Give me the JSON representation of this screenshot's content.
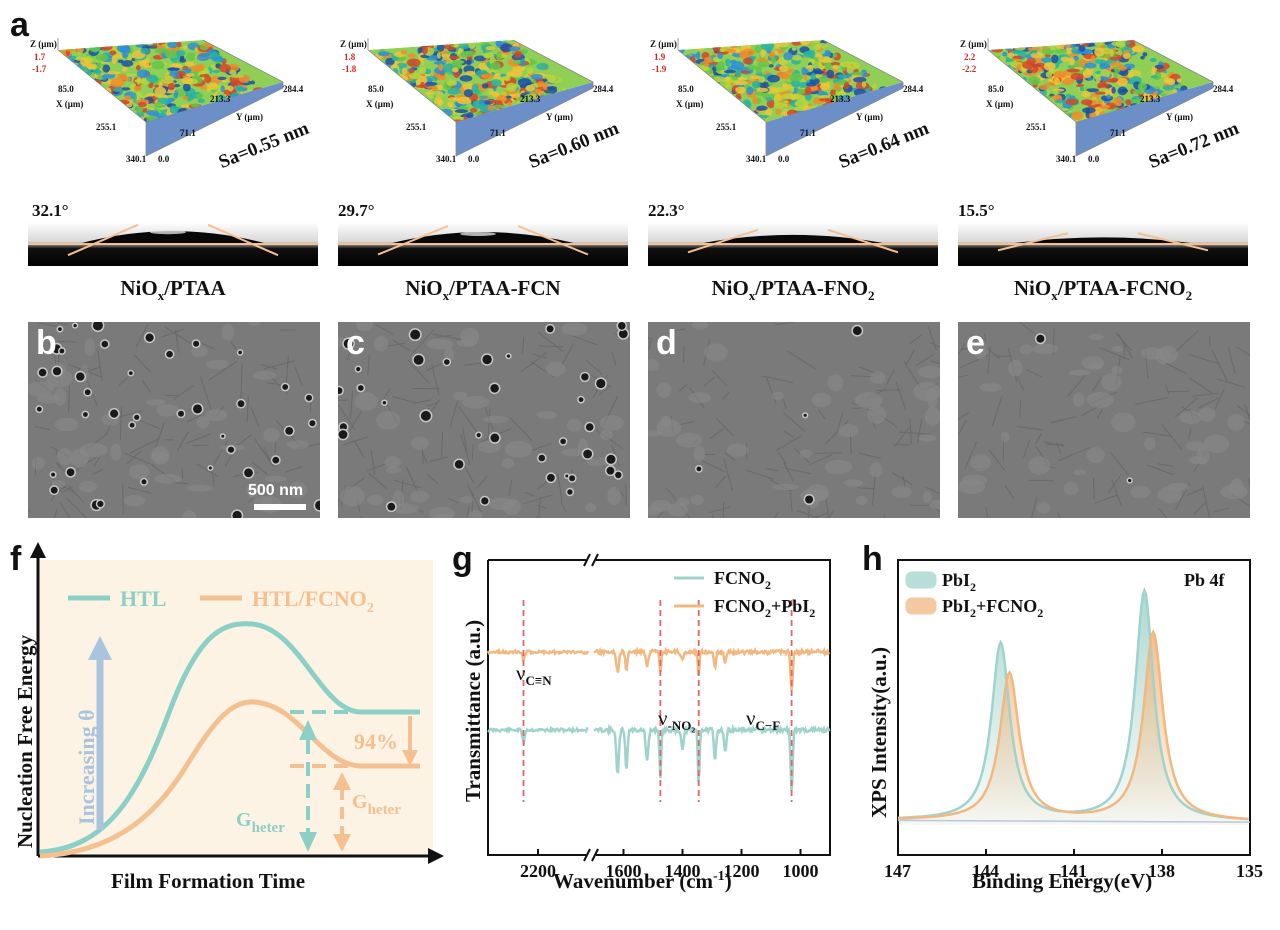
{
  "figure": {
    "panel_a": {
      "label": "a",
      "samples": [
        {
          "z_label": "Z (μm)",
          "z_max": "1.7",
          "z_min": "-1.7",
          "x_label": "X (μm)",
          "x_ticks": [
            "85.0",
            "255.1",
            "340.1"
          ],
          "zero": "0.0",
          "y_label": "Y (μm)",
          "y_ticks": [
            "284.4",
            "213.3",
            "71.1"
          ],
          "sa": "Sa=0.55 nm",
          "angle": "32.1°",
          "caption_main": "NiO",
          "caption_sub": "x",
          "caption_rest": "/PTAA",
          "caption_rest_sub": "",
          "droplet_height": 0.55
        },
        {
          "z_label": "Z (μm)",
          "z_max": "1.8",
          "z_min": "-1.8",
          "x_label": "X (μm)",
          "x_ticks": [
            "85.0",
            "255.1",
            "340.1"
          ],
          "zero": "0.0",
          "y_label": "Y (μm)",
          "y_ticks": [
            "284.4",
            "213.3",
            "71.1"
          ],
          "sa": "Sa=0.60 nm",
          "angle": "29.7°",
          "caption_main": "NiO",
          "caption_sub": "x",
          "caption_rest": "/PTAA-FCN",
          "caption_rest_sub": "",
          "droplet_height": 0.5
        },
        {
          "z_label": "Z (μm)",
          "z_max": "1.9",
          "z_min": "-1.9",
          "x_label": "X (μm)",
          "x_ticks": [
            "85.0",
            "255.1",
            "340.1"
          ],
          "zero": "0.0",
          "y_label": "Y (μm)",
          "y_ticks": [
            "284.4",
            "213.3",
            "71.1"
          ],
          "sa": "Sa=0.64 nm",
          "angle": "22.3°",
          "caption_main": "NiO",
          "caption_sub": "x",
          "caption_rest": "/PTAA-FNO",
          "caption_rest_sub": "2",
          "droplet_height": 0.34
        },
        {
          "z_label": "Z (μm)",
          "z_max": "2.2",
          "z_min": "-2.2",
          "x_label": "X (μm)",
          "x_ticks": [
            "85.0",
            "255.1",
            "340.1"
          ],
          "zero": "0.0",
          "y_label": "Y (μm)",
          "y_ticks": [
            "284.4",
            "213.3",
            "71.1"
          ],
          "sa": "Sa=0.72 nm",
          "angle": "15.5°",
          "caption_main": "NiO",
          "caption_sub": "x",
          "caption_rest": "/PTAA-FCNO",
          "caption_rest_sub": "2",
          "droplet_height": 0.2
        }
      ]
    },
    "sem_panels": [
      {
        "label": "b",
        "scale_bar": "500 nm"
      },
      {
        "label": "c",
        "scale_bar": ""
      },
      {
        "label": "d",
        "scale_bar": ""
      },
      {
        "label": "e",
        "scale_bar": ""
      }
    ],
    "panel_f": {
      "label": "f",
      "ylabel": "Nucleation Free Energy",
      "xlabel": "Film Formation Time",
      "legend": [
        {
          "name": "HTL",
          "color": "#8ccfc6"
        },
        {
          "name": "HTL/FCNO",
          "sub": "2",
          "color": "#f5c08f"
        }
      ],
      "arrow_text": "Increasing θ",
      "percent": "94%",
      "g_label": "G",
      "g_sub": "heter"
    },
    "panel_g": {
      "label": "g",
      "ylabel": "Transmittance (a.u.)",
      "xlabel": "Wavenumber (cm",
      "xlabel_sup": "-1",
      "xlabel_end": ")",
      "x_ticks": [
        "2200",
        "1600",
        "1400",
        "1200",
        "1000"
      ],
      "legend": [
        {
          "name": "FCNO",
          "sub": "2",
          "color": "#9fd3cc"
        },
        {
          "name": "FCNO",
          "sub": "2",
          "suffix": "+PbI",
          "suffix_sub": "2",
          "color": "#f2b880"
        }
      ],
      "annotations": [
        {
          "text": "ν",
          "sub": "C≡N"
        },
        {
          "text": "ν",
          "sub": "-NO₂"
        },
        {
          "text": "ν",
          "sub": "C−F"
        }
      ]
    },
    "panel_h": {
      "label": "h",
      "ylabel": "XPS Intensity(a.u.)",
      "xlabel": "Binding Energy(eV)",
      "x_ticks": [
        "147",
        "144",
        "141",
        "138",
        "135"
      ],
      "title": "Pb 4f",
      "legend": [
        {
          "name": "PbI",
          "sub": "2",
          "color": "#9fd3cc"
        },
        {
          "name": "PbI",
          "sub": "2",
          "suffix": "+FCNO",
          "suffix_sub": "2",
          "color": "#f2b880"
        }
      ]
    }
  },
  "chart_data": [
    {
      "type": "line",
      "panel": "g",
      "xlabel": "Wavenumber (cm-1)",
      "ylabel": "Transmittance (a.u.)",
      "axis_break": true,
      "segments": [
        [
          2300,
          2100
        ],
        [
          1700,
          900
        ]
      ],
      "series": [
        {
          "name": "FCNO2",
          "color": "#9fd3cc",
          "peaks": [
            2229,
            1620,
            1590,
            1520,
            1475,
            1400,
            1345,
            1290,
            1255,
            1030
          ]
        },
        {
          "name": "FCNO2+PbI2",
          "color": "#f2b880",
          "peaks": [
            2229,
            1620,
            1590,
            1520,
            1475,
            1400,
            1345,
            1290,
            1255,
            1030
          ]
        }
      ],
      "markers": [
        2229,
        1475,
        1345,
        1030
      ]
    },
    {
      "type": "line",
      "panel": "h",
      "xlabel": "Binding Energy(eV)",
      "ylabel": "XPS Intensity(a.u.)",
      "xlim": [
        147,
        135
      ],
      "series": [
        {
          "name": "PbI2",
          "color": "#9fd3cc",
          "peaks": [
            {
              "x": 143.5,
              "height": 0.77
            },
            {
              "x": 138.6,
              "height": 1.0
            }
          ]
        },
        {
          "name": "PbI2+FCNO2",
          "color": "#f2b880",
          "peaks": [
            {
              "x": 143.2,
              "height": 0.64
            },
            {
              "x": 138.3,
              "height": 0.82
            }
          ]
        }
      ]
    }
  ]
}
